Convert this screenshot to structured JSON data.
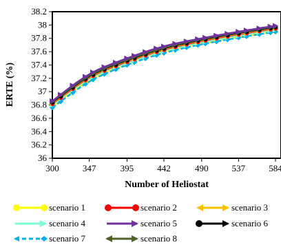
{
  "chart_data": {
    "type": "line",
    "xlabel": "Number of Heliostat",
    "ylabel": "ERTE (%)",
    "xlim": [
      300,
      584
    ],
    "ylim": [
      36,
      38.2
    ],
    "x_ticks": [
      "300",
      "347",
      "395",
      "442",
      "490",
      "537",
      "584"
    ],
    "y_ticks": [
      "36",
      "36.2",
      "36.4",
      "36.6",
      "36.8",
      "37",
      "37.2",
      "37.4",
      "37.6",
      "37.8",
      "38",
      "38.2"
    ],
    "grid": false,
    "legend_position": "bottom",
    "x": [
      300,
      347,
      395,
      442,
      490,
      537,
      584
    ],
    "series": [
      {
        "name": "scenario 1",
        "color": "#ffff00",
        "marker": "circle",
        "values": [
          36.78,
          37.17,
          37.42,
          37.6,
          37.72,
          37.82,
          37.9
        ]
      },
      {
        "name": "scenario 2",
        "color": "#ff0000",
        "marker": "circle",
        "values": [
          36.82,
          37.21,
          37.45,
          37.63,
          37.76,
          37.86,
          37.95
        ]
      },
      {
        "name": "scenario 3",
        "color": "#ffc000",
        "marker": "arrow-double",
        "values": [
          36.83,
          37.22,
          37.46,
          37.64,
          37.77,
          37.87,
          37.96
        ]
      },
      {
        "name": "scenario 4",
        "color": "#7fffd4",
        "marker": "arrow",
        "values": [
          36.8,
          37.19,
          37.43,
          37.61,
          37.74,
          37.84,
          37.93
        ]
      },
      {
        "name": "scenario 5",
        "color": "#7030a0",
        "marker": "arrow",
        "values": [
          36.86,
          37.26,
          37.5,
          37.68,
          37.8,
          37.9,
          37.99
        ]
      },
      {
        "name": "scenario 6",
        "color": "#000000",
        "marker": "circle-arrow",
        "values": [
          36.84,
          37.23,
          37.47,
          37.65,
          37.78,
          37.88,
          37.97
        ]
      },
      {
        "name": "scenario 7",
        "color": "#00b0f0",
        "marker": "diamond-dash",
        "values": [
          36.76,
          37.15,
          37.4,
          37.58,
          37.71,
          37.81,
          37.9
        ]
      },
      {
        "name": "scenario 8",
        "color": "#4f6228",
        "marker": "arrow-double",
        "values": [
          36.85,
          37.24,
          37.48,
          37.66,
          37.79,
          37.89,
          37.98
        ]
      }
    ]
  }
}
